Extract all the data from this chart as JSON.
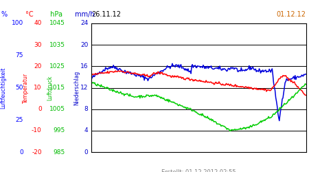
{
  "title_left": "26.11.12",
  "title_right": "01.12.12",
  "footer": "Erstellt: 01.12.2012 02:55",
  "bg_color": "#ffffff",
  "line_colors": {
    "blue": "#0000dd",
    "red": "#ff0000",
    "green": "#00cc00"
  },
  "headers": [
    "% ",
    " °C",
    " hPa",
    " mm/h"
  ],
  "header_colors": [
    "#0000ff",
    "#ff0000",
    "#00bb00",
    "#0000cc"
  ],
  "rotated_labels": [
    "Luftfeuchtigkeit",
    "Temperatur",
    "Luftdruck",
    "Niederschlag"
  ],
  "rotated_colors": [
    "#0000ff",
    "#ff0000",
    "#00bb00",
    "#0000cc"
  ],
  "pct_ticks": [
    0,
    25,
    50,
    75,
    100
  ],
  "temp_ticks": [
    -20,
    -10,
    0,
    10,
    20,
    30,
    40
  ],
  "hpa_ticks": [
    985,
    995,
    1005,
    1015,
    1025,
    1035,
    1045
  ],
  "mmh_ticks": [
    0,
    4,
    8,
    12,
    16,
    20,
    24
  ],
  "n_points": 300,
  "date_left_color": "#000000",
  "date_right_color": "#cc6600",
  "footer_color": "#808080"
}
